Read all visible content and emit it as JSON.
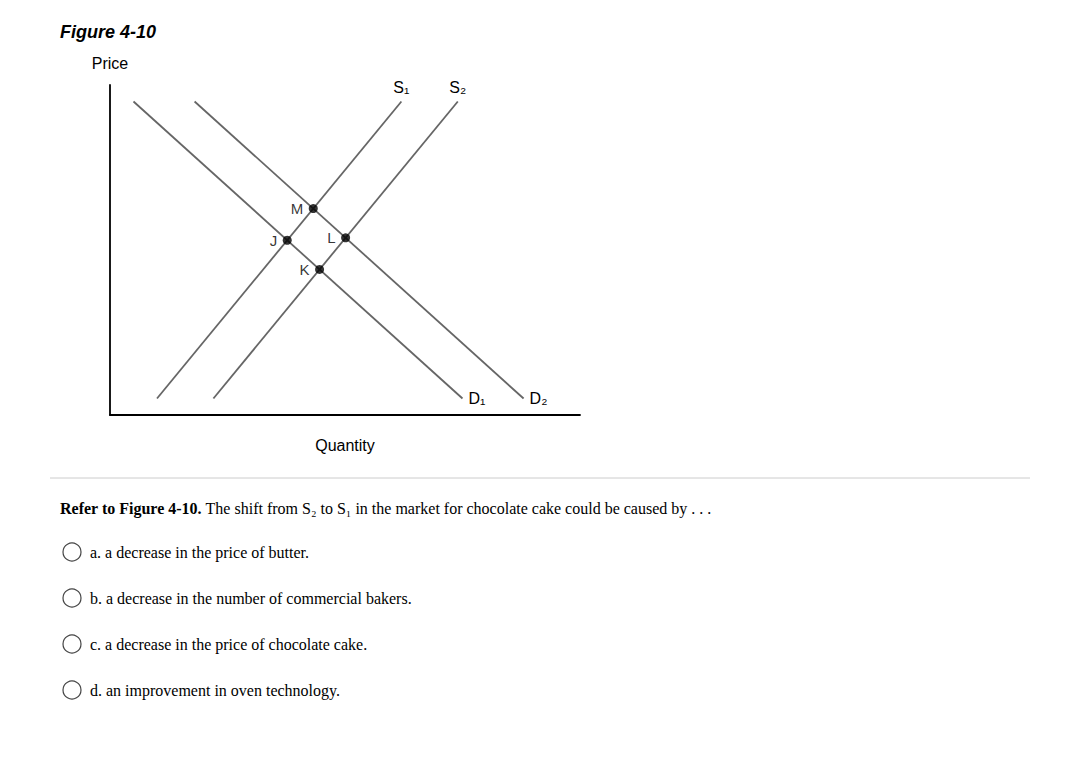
{
  "chart_data": {
    "type": "line",
    "title": "Figure 4-10",
    "x_label": "Quantity",
    "y_label": "Price",
    "xlim": [
      0,
      10
    ],
    "ylim": [
      0,
      10
    ],
    "xticks": [],
    "yticks": [],
    "grid": false,
    "tick_labels": false,
    "series": [
      {
        "name": "S₁",
        "color": "#666666",
        "x": [
          1.0,
          6.2
        ],
        "values": [
          0.5,
          9.5
        ]
      },
      {
        "name": "S₂",
        "color": "#666666",
        "x": [
          2.2,
          7.4
        ],
        "values": [
          0.5,
          9.5
        ]
      },
      {
        "name": "D₁",
        "color": "#666666",
        "x": [
          0.5,
          7.5
        ],
        "values": [
          9.5,
          0.5
        ]
      },
      {
        "name": "D₂",
        "color": "#666666",
        "x": [
          1.8,
          8.8
        ],
        "values": [
          9.5,
          0.5
        ]
      },
      {
        "type": "scatter",
        "color": "#000000",
        "x": [
          4.324590163934426,
          3.7704918032786887,
          5.013114754098361,
          4.459016393442623
        ],
        "values": [
          6.254098360655738,
          5.295081967213115,
          5.368852459016393,
          4.40983606557377
        ]
      }
    ],
    "annotations": [
      {
        "text": "M",
        "x": 4.324590163934426,
        "y": 6.254098360655738
      },
      {
        "text": "J",
        "x": 3.7704918032786887,
        "y": 5.295081967213115
      },
      {
        "text": "L",
        "x": 5.013114754098361,
        "y": 5.368852459016393
      },
      {
        "text": "K",
        "x": 4.459016393442623,
        "y": 4.40983606557377
      }
    ],
    "question_lead": "Refer to Figure 4-10.",
    "question": "The shift from S₂ to S₁ in the market for chocolate cake could be caused by . . .",
    "answers": [
      "a. a decrease in the price of butter.",
      "b. a decrease in the number of commercial bakers.",
      "c. a decrease in the price of chocolate cake.",
      "d. an improvement in oven technology."
    ]
  }
}
